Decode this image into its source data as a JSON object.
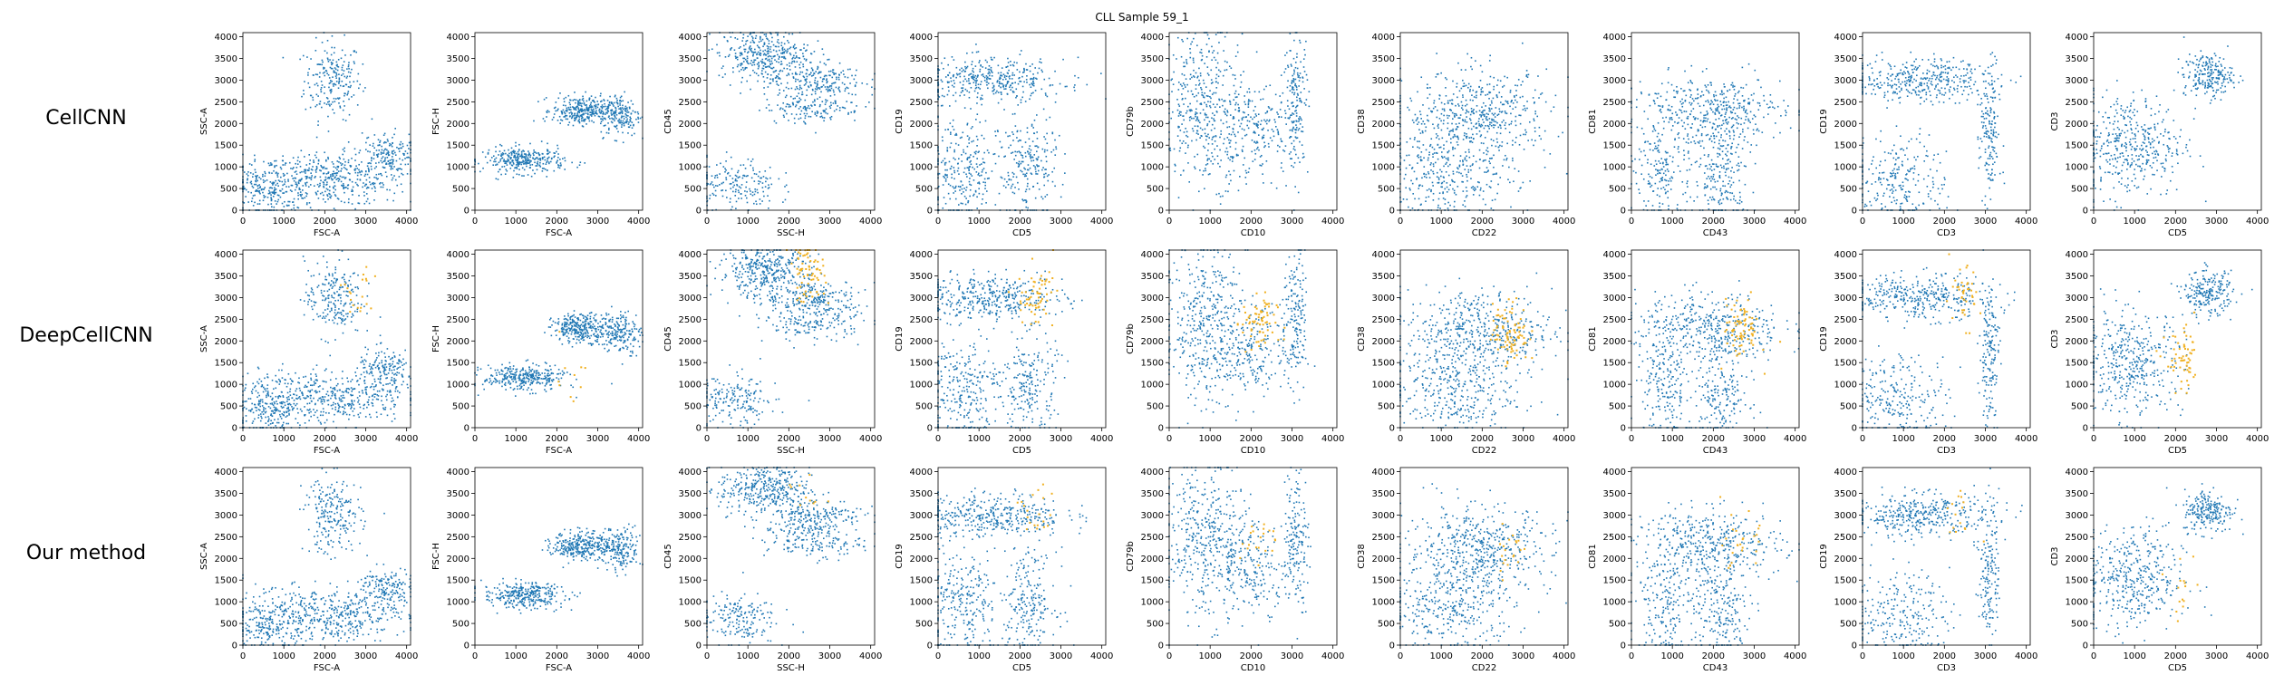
{
  "page": {
    "title": "CLL Sample 59_1",
    "rows": [
      "CellCNN",
      "DeepCellCNN",
      "Our method"
    ]
  },
  "colors": {
    "population": "#1f77b4",
    "highlight": "#f0b020"
  },
  "chart_data": {
    "type": "scatter",
    "title": "CLL Sample 59_1",
    "row_labels": [
      "CellCNN",
      "DeepCellCNN",
      "Our method"
    ],
    "ticks": [
      0,
      500,
      1000,
      1500,
      2000,
      2500,
      3000,
      3500,
      4000
    ],
    "xticks": [
      0,
      1000,
      2000,
      3000,
      4000
    ],
    "xlim": [
      0,
      4096
    ],
    "ylim": [
      0,
      4096
    ],
    "grid": false,
    "panels": [
      {
        "xlabel": "FSC-A",
        "ylabel": "SSC-A",
        "clusters": [
          {
            "x": 2200,
            "y": 3000,
            "sx": 350,
            "sy": 450,
            "n": 220
          },
          {
            "x": 2200,
            "y": 700,
            "sx": 900,
            "sy": 300,
            "n": 420
          },
          {
            "x": 3500,
            "y": 1300,
            "sx": 350,
            "sy": 250,
            "n": 160
          },
          {
            "x": 600,
            "y": 500,
            "sx": 450,
            "sy": 350,
            "n": 220
          }
        ],
        "highlight": [
          0,
          20,
          0
        ]
      },
      {
        "xlabel": "FSC-A",
        "ylabel": "FSC-H",
        "clusters": [
          {
            "x": 1200,
            "y": 1150,
            "sx": 500,
            "sy": 150,
            "n": 320
          },
          {
            "x": 2600,
            "y": 2300,
            "sx": 350,
            "sy": 160,
            "n": 300
          },
          {
            "x": 3550,
            "y": 2200,
            "sx": 250,
            "sy": 250,
            "n": 180
          }
        ],
        "highlight": [
          0,
          10,
          0
        ]
      },
      {
        "xlabel": "SSC-H",
        "ylabel": "CD45",
        "clusters": [
          {
            "x": 1400,
            "y": 3600,
            "sx": 550,
            "sy": 300,
            "n": 360
          },
          {
            "x": 2600,
            "y": 3000,
            "sx": 600,
            "sy": 200,
            "n": 200
          },
          {
            "x": 2600,
            "y": 2400,
            "sx": 600,
            "sy": 200,
            "n": 160
          },
          {
            "x": 700,
            "y": 600,
            "sx": 500,
            "sy": 300,
            "n": 180
          }
        ],
        "highlight": [
          0,
          70,
          10
        ]
      },
      {
        "xlabel": "CD5",
        "ylabel": "CD19",
        "clusters": [
          {
            "x": 1300,
            "y": 3000,
            "sx": 900,
            "sy": 250,
            "n": 380
          },
          {
            "x": 600,
            "y": 900,
            "sx": 450,
            "sy": 650,
            "n": 260
          },
          {
            "x": 2200,
            "y": 1000,
            "sx": 350,
            "sy": 600,
            "n": 220
          }
        ],
        "highlight": [
          0,
          60,
          20
        ]
      },
      {
        "xlabel": "CD10",
        "ylabel": "CD79b",
        "clusters": [
          {
            "x": 900,
            "y": 2400,
            "sx": 500,
            "sy": 900,
            "n": 420
          },
          {
            "x": 2100,
            "y": 1800,
            "sx": 500,
            "sy": 500,
            "n": 200
          },
          {
            "x": 3100,
            "y": 2500,
            "sx": 150,
            "sy": 800,
            "n": 160
          }
        ],
        "highlight": [
          0,
          70,
          20
        ]
      },
      {
        "xlabel": "CD22",
        "ylabel": "CD38",
        "clusters": [
          {
            "x": 1900,
            "y": 2200,
            "sx": 900,
            "sy": 500,
            "n": 500
          },
          {
            "x": 1200,
            "y": 800,
            "sx": 800,
            "sy": 500,
            "n": 320
          }
        ],
        "highlight": [
          0,
          90,
          20
        ]
      },
      {
        "xlabel": "CD43",
        "ylabel": "CD81",
        "clusters": [
          {
            "x": 1900,
            "y": 2300,
            "sx": 900,
            "sy": 400,
            "n": 420
          },
          {
            "x": 800,
            "y": 900,
            "sx": 350,
            "sy": 600,
            "n": 180
          },
          {
            "x": 2200,
            "y": 800,
            "sx": 350,
            "sy": 600,
            "n": 200
          }
        ],
        "highlight": [
          0,
          80,
          25
        ]
      },
      {
        "xlabel": "CD3",
        "ylabel": "CD19",
        "clusters": [
          {
            "x": 1400,
            "y": 3000,
            "sx": 900,
            "sy": 250,
            "n": 380
          },
          {
            "x": 900,
            "y": 700,
            "sx": 600,
            "sy": 500,
            "n": 240
          },
          {
            "x": 3100,
            "y": 1700,
            "sx": 120,
            "sy": 800,
            "n": 160
          }
        ],
        "highlight": [
          0,
          40,
          15
        ]
      },
      {
        "xlabel": "CD5",
        "ylabel": "CD3",
        "clusters": [
          {
            "x": 900,
            "y": 1500,
            "sx": 650,
            "sy": 600,
            "n": 420
          },
          {
            "x": 2800,
            "y": 3100,
            "sx": 300,
            "sy": 250,
            "n": 220
          }
        ],
        "highlight": [
          0,
          60,
          15
        ]
      }
    ]
  }
}
